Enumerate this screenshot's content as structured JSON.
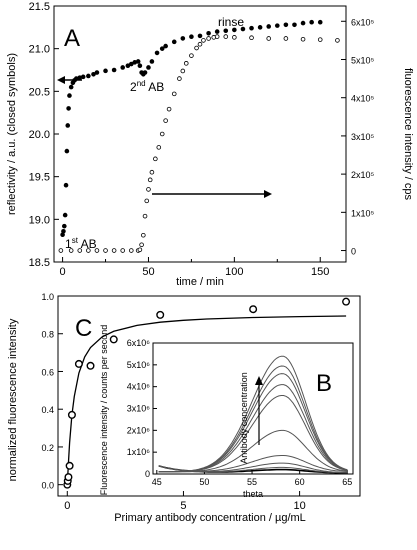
{
  "chart_data": [
    {
      "panel": "A",
      "type": "scatter",
      "xlabel": "time / min",
      "ylabel_left": "reflectivity / a.u. (closed symbols)",
      "ylabel_right": "fluorescence intensity / cps",
      "xlim": [
        -5,
        165
      ],
      "ylim_left": [
        18.5,
        21.5
      ],
      "ylim_right": [
        -0.3,
        6.4
      ],
      "x_ticks": [
        "0",
        "50",
        "100",
        "150"
      ],
      "y_left_ticks": [
        "18.5",
        "19.0",
        "19.5",
        "20.0",
        "20.5",
        "21.0",
        "21.5"
      ],
      "y_right_ticks": [
        "0",
        "1x10⁵",
        "2x10⁵",
        "3x10⁵",
        "4x10⁵",
        "5x10⁵",
        "6x10⁵"
      ],
      "right_axis_unit": 100000,
      "annotations": {
        "first_ab_prefix": "1",
        "first_ab_sup": "st",
        "first_ab_suffix": " AB",
        "second_ab_prefix": "2",
        "second_ab_sup": "nd",
        "second_ab_suffix": " AB",
        "rinse": "rinse"
      },
      "series": [
        {
          "name": "reflectivity (closed symbols)",
          "axis": "left",
          "x": [
            0,
            0.5,
            1,
            1.5,
            2,
            2.5,
            3,
            3.5,
            4,
            5,
            6,
            7,
            8,
            10,
            12,
            15,
            18,
            20,
            25,
            30,
            35,
            38,
            40,
            42,
            44,
            45,
            46,
            47,
            48,
            50,
            52,
            55,
            58,
            60,
            65,
            70,
            75,
            80,
            85,
            90,
            95,
            100,
            105,
            110,
            115,
            120,
            125,
            130,
            135,
            140,
            145,
            150
          ],
          "y": [
            18.82,
            18.86,
            18.92,
            19.05,
            19.4,
            19.8,
            20.1,
            20.3,
            20.45,
            20.55,
            20.6,
            20.63,
            20.65,
            20.66,
            20.67,
            20.68,
            20.7,
            20.72,
            20.74,
            20.75,
            20.78,
            20.8,
            20.82,
            20.84,
            20.85,
            20.8,
            20.72,
            20.7,
            20.72,
            20.78,
            20.85,
            20.95,
            21.0,
            21.03,
            21.08,
            21.12,
            21.14,
            21.15,
            21.18,
            21.2,
            21.21,
            21.22,
            21.23,
            21.24,
            21.25,
            21.26,
            21.27,
            21.28,
            21.28,
            21.3,
            21.31,
            21.31
          ]
        },
        {
          "name": "fluorescence (open symbols)",
          "axis": "right",
          "x": [
            -1,
            5,
            10,
            15,
            20,
            25,
            30,
            35,
            40,
            44,
            45,
            46,
            47,
            48,
            49,
            50,
            51,
            52,
            54,
            56,
            58,
            60,
            62,
            65,
            68,
            70,
            72,
            75,
            78,
            80,
            82,
            85,
            88,
            90,
            95,
            100,
            110,
            120,
            130,
            140,
            150,
            160
          ],
          "y": [
            0,
            0,
            0,
            0,
            0,
            0,
            0,
            0,
            0,
            0,
            0.02,
            0.15,
            0.4,
            0.9,
            1.3,
            1.6,
            1.85,
            2.05,
            2.4,
            2.7,
            3.05,
            3.4,
            3.7,
            4.1,
            4.5,
            4.7,
            4.9,
            5.1,
            5.3,
            5.4,
            5.5,
            5.55,
            5.58,
            5.6,
            5.6,
            5.58,
            5.57,
            5.55,
            5.55,
            5.53,
            5.52,
            5.5
          ]
        }
      ]
    },
    {
      "panel": "C",
      "type": "scatter",
      "xlabel": "Primary antibody concentration / µg/mL",
      "ylabel": "normalized fluorescence intensity",
      "xlim": [
        -0.4,
        12.6
      ],
      "ylim": [
        -0.06,
        1.0
      ],
      "x_ticks": [
        "0",
        "5",
        "10"
      ],
      "y_ticks": [
        "0.0",
        "0.2",
        "0.4",
        "0.6",
        "0.8",
        "1.0"
      ],
      "series": [
        {
          "name": "measured (open symbols)",
          "x": [
            0,
            0.02,
            0.05,
            0.1,
            0.2,
            0.5,
            1,
            2,
            4,
            8,
            12
          ],
          "y": [
            0.0,
            0.02,
            0.04,
            0.1,
            0.37,
            0.64,
            0.63,
            0.77,
            0.9,
            0.93,
            0.97
          ]
        },
        {
          "name": "fit",
          "x": [
            0,
            0.05,
            0.1,
            0.2,
            0.3,
            0.5,
            0.75,
            1,
            1.5,
            2,
            3,
            4,
            5,
            6,
            8,
            10,
            12
          ],
          "y": [
            0,
            0.122,
            0.222,
            0.369,
            0.468,
            0.592,
            0.677,
            0.727,
            0.783,
            0.813,
            0.844,
            0.861,
            0.871,
            0.878,
            0.886,
            0.891,
            0.894
          ]
        }
      ]
    },
    {
      "panel": "B",
      "type": "line",
      "xlabel": "theta",
      "ylabel": "Fluorescence intensity / counts per second",
      "annotation": "Antibody concentration",
      "xlim": [
        44.6,
        65.6
      ],
      "ylim": [
        0,
        6
      ],
      "x_ticks": [
        "45",
        "50",
        "55",
        "60",
        "65"
      ],
      "y_ticks": [
        "0",
        "1x10⁶",
        "2x10⁶",
        "3x10⁶",
        "4x10⁶",
        "5x10⁶",
        "6x10⁶"
      ],
      "y_unit": 1000000,
      "peak_theta": 58.2,
      "peak_values": [
        0.15,
        0.25,
        0.45,
        0.75,
        1.9,
        3.5,
        4.0,
        4.5,
        4.85,
        5.3
      ]
    }
  ]
}
